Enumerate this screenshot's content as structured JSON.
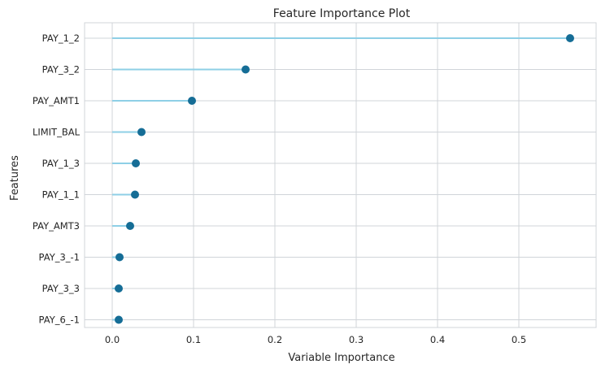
{
  "chart_data": {
    "type": "lollipop",
    "title": "Feature Importance Plot",
    "xlabel": "Variable Importance",
    "ylabel": "Features",
    "xlim": [
      -0.034,
      0.585
    ],
    "xticks": [
      0.0,
      0.1,
      0.2,
      0.3,
      0.4,
      0.5
    ],
    "xtick_labels": [
      "0.0",
      "0.1",
      "0.2",
      "0.3",
      "0.4",
      "0.5"
    ],
    "grid": true,
    "categories": [
      "PAY_1_2",
      "PAY_3_2",
      "PAY_AMT1",
      "LIMIT_BAL",
      "PAY_1_3",
      "PAY_1_1",
      "PAY_AMT3",
      "PAY_3_-1",
      "PAY_3_3",
      "PAY_6_-1"
    ],
    "values": [
      0.563,
      0.164,
      0.098,
      0.036,
      0.029,
      0.028,
      0.022,
      0.009,
      0.008,
      0.008
    ],
    "colors": {
      "stem": "#8ecfe6",
      "marker": "#156d96",
      "grid": "#d0d4d9",
      "text": "#262626"
    }
  }
}
